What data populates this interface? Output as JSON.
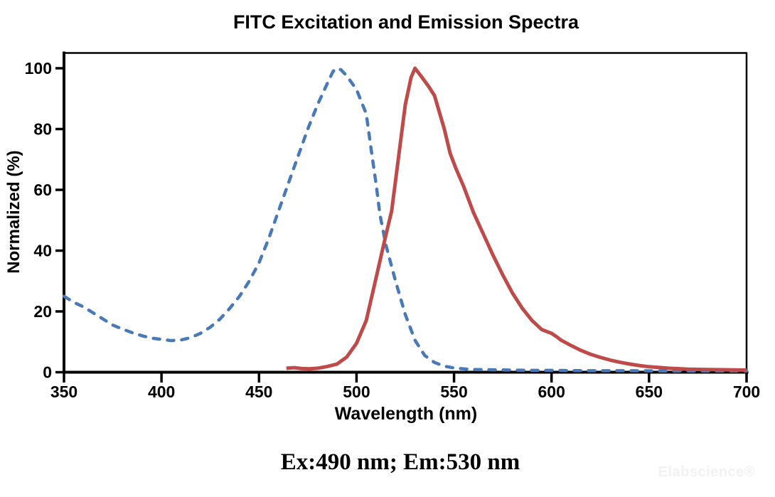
{
  "watermark": "Elabscience®",
  "chart_data": {
    "type": "line",
    "title": "FITC Excitation and Emission Spectra",
    "xlabel": "Wavelength (nm)",
    "ylabel": "Normalized (%)",
    "annotation": "Ex:490 nm; Em:530 nm",
    "xlim": [
      350,
      700
    ],
    "ylim": [
      0,
      100
    ],
    "x_ticks": [
      350,
      400,
      450,
      500,
      550,
      600,
      650,
      700
    ],
    "y_ticks": [
      0,
      20,
      40,
      60,
      80,
      100
    ],
    "grid": false,
    "legend_position": "none",
    "axis_color": "#000000",
    "ex_peak_nm": 490,
    "em_peak_nm": 530,
    "series": [
      {
        "name": "Excitation",
        "line_style": "dashed",
        "color": "#4A79B8",
        "points": [
          [
            350,
            25
          ],
          [
            355,
            23
          ],
          [
            360,
            21.5
          ],
          [
            365,
            19.5
          ],
          [
            370,
            17.5
          ],
          [
            375,
            15.5
          ],
          [
            380,
            14.2
          ],
          [
            385,
            13
          ],
          [
            390,
            12
          ],
          [
            395,
            11.2
          ],
          [
            400,
            10.8
          ],
          [
            405,
            10.4
          ],
          [
            410,
            10.6
          ],
          [
            415,
            11.4
          ],
          [
            420,
            12.8
          ],
          [
            425,
            14.8
          ],
          [
            430,
            17.5
          ],
          [
            435,
            21
          ],
          [
            440,
            25
          ],
          [
            445,
            30
          ],
          [
            450,
            36
          ],
          [
            455,
            44
          ],
          [
            460,
            53
          ],
          [
            465,
            62
          ],
          [
            470,
            71
          ],
          [
            475,
            80
          ],
          [
            480,
            88
          ],
          [
            485,
            95
          ],
          [
            488,
            99
          ],
          [
            490,
            100
          ],
          [
            492,
            99.5
          ],
          [
            495,
            97.5
          ],
          [
            500,
            93
          ],
          [
            505,
            85
          ],
          [
            508,
            71
          ],
          [
            510,
            62
          ],
          [
            512,
            52
          ],
          [
            515,
            42
          ],
          [
            520,
            30
          ],
          [
            525,
            19
          ],
          [
            530,
            10.5
          ],
          [
            535,
            5.5
          ],
          [
            540,
            3.2
          ],
          [
            545,
            2
          ],
          [
            550,
            1.4
          ],
          [
            555,
            1.1
          ],
          [
            560,
            0.9
          ],
          [
            570,
            0.8
          ],
          [
            580,
            0.7
          ],
          [
            590,
            0.6
          ],
          [
            600,
            0.6
          ],
          [
            620,
            0.5
          ],
          [
            640,
            0.5
          ],
          [
            660,
            0.4
          ],
          [
            680,
            0.4
          ],
          [
            700,
            0.4
          ]
        ]
      },
      {
        "name": "Emission",
        "line_style": "solid",
        "color": "#BE4B49",
        "points": [
          [
            464,
            1.3
          ],
          [
            468,
            1.5
          ],
          [
            472,
            1.2
          ],
          [
            476,
            1.1
          ],
          [
            480,
            1.3
          ],
          [
            485,
            1.9
          ],
          [
            490,
            2.7
          ],
          [
            495,
            5
          ],
          [
            500,
            9.5
          ],
          [
            505,
            17
          ],
          [
            510,
            31
          ],
          [
            515,
            45
          ],
          [
            518,
            53
          ],
          [
            520,
            63
          ],
          [
            523,
            78
          ],
          [
            525,
            88
          ],
          [
            528,
            97
          ],
          [
            530,
            100
          ],
          [
            533,
            97.5
          ],
          [
            537,
            94
          ],
          [
            540,
            91
          ],
          [
            545,
            80
          ],
          [
            548,
            72
          ],
          [
            551,
            67
          ],
          [
            555,
            61
          ],
          [
            560,
            52.5
          ],
          [
            565,
            45.5
          ],
          [
            570,
            38.5
          ],
          [
            575,
            32
          ],
          [
            580,
            26
          ],
          [
            585,
            21
          ],
          [
            590,
            17
          ],
          [
            595,
            14
          ],
          [
            600,
            12.8
          ],
          [
            603,
            11.5
          ],
          [
            605,
            10.5
          ],
          [
            610,
            8.8
          ],
          [
            615,
            7.2
          ],
          [
            620,
            5.9
          ],
          [
            625,
            4.9
          ],
          [
            630,
            4
          ],
          [
            635,
            3.3
          ],
          [
            640,
            2.7
          ],
          [
            645,
            2.2
          ],
          [
            650,
            1.8
          ],
          [
            660,
            1.3
          ],
          [
            670,
            1
          ],
          [
            680,
            0.9
          ],
          [
            690,
            0.8
          ],
          [
            700,
            0.7
          ]
        ]
      }
    ]
  }
}
